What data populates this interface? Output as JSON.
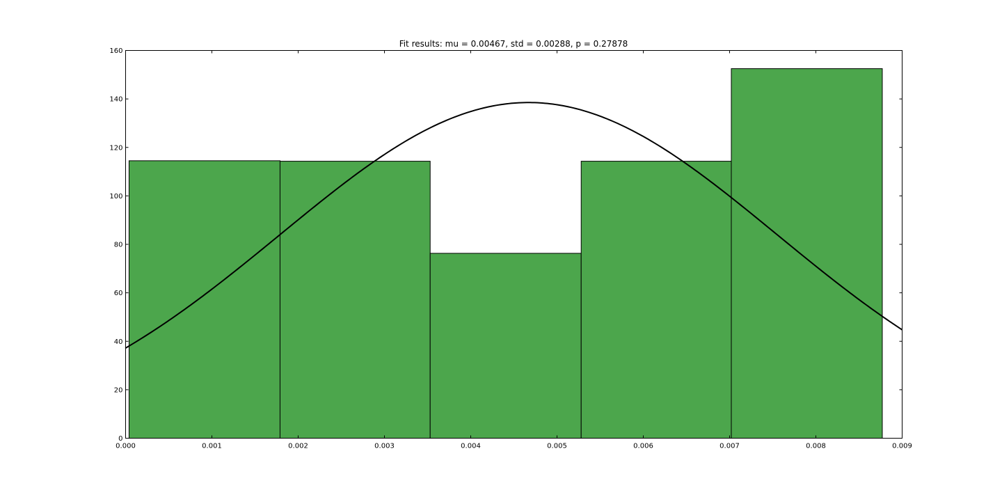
{
  "chart_data": {
    "type": "bar",
    "title": "Fit results: mu = 0.00467,  std = 0.00288, p = 0.27878",
    "xlabel": "",
    "ylabel": "",
    "xlim": [
      0.0,
      0.009
    ],
    "ylim": [
      0,
      160
    ],
    "x_ticks": [
      0.0,
      0.001,
      0.002,
      0.003,
      0.004,
      0.005,
      0.006,
      0.007,
      0.008,
      0.009
    ],
    "x_tick_labels": [
      "0.000",
      "0.001",
      "0.002",
      "0.003",
      "0.004",
      "0.005",
      "0.006",
      "0.007",
      "0.008",
      "0.009"
    ],
    "y_ticks": [
      0,
      20,
      40,
      60,
      80,
      100,
      120,
      140,
      160
    ],
    "y_tick_labels": [
      "0",
      "20",
      "40",
      "60",
      "80",
      "100",
      "120",
      "140",
      "160"
    ],
    "grid": false,
    "bins": [
      {
        "x0": 4e-05,
        "x1": 0.00179,
        "value": 114.5
      },
      {
        "x0": 0.00179,
        "x1": 0.00353,
        "value": 114.3
      },
      {
        "x0": 0.00353,
        "x1": 0.00528,
        "value": 76.3
      },
      {
        "x0": 0.00528,
        "x1": 0.00702,
        "value": 114.3
      },
      {
        "x0": 0.00702,
        "x1": 0.00877,
        "value": 152.5
      }
    ],
    "fit_curve": {
      "type": "normal_pdf",
      "mu": 0.00467,
      "std": 0.00288
    },
    "colors": {
      "bar_fill": "#4ca64c",
      "bar_edge": "#000000",
      "curve": "#000000"
    }
  }
}
